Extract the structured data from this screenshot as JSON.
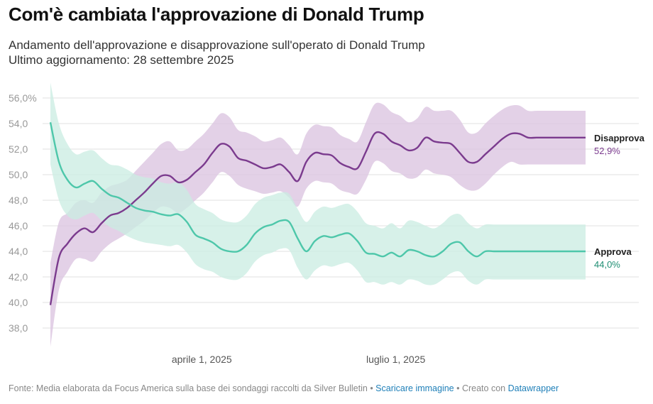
{
  "title": "Com'è cambiata l'approvazione di Donald Trump",
  "subtitle_line1": "Andamento dell'approvazione e disapprovazione sull'operato di Donald Trump",
  "subtitle_line2": "Ultimo aggiornamento: 28 settembre 2025",
  "footer": {
    "source": "Fonte: Media elaborata da Focus America sulla base dei sondaggi raccolti da Silver Bulletin",
    "sep1": " • ",
    "download": "Scaricare immagine",
    "sep2": " • Creato con ",
    "tool": "Datawrapper"
  },
  "colors": {
    "disapprove_line": "#7b3b8e",
    "disapprove_band": "#d9c2df",
    "approve_line": "#4ec7aa",
    "approve_band": "#c9ece1",
    "approve_value_label": "#1f8e73",
    "grid": "#e2e2e2"
  },
  "chart_data": {
    "type": "line",
    "x_axis": {
      "type": "date",
      "range": [
        "2025-01-20",
        "2025-09-28"
      ],
      "ticks": [
        "2025-04-01",
        "2025-07-01"
      ],
      "tick_labels": [
        "aprile 1, 2025",
        "luglio 1, 2025"
      ]
    },
    "y_axis": {
      "range": [
        37,
        57
      ],
      "ticks": [
        38,
        40,
        42,
        44,
        46,
        48,
        50,
        52,
        54,
        56
      ],
      "tick_labels": [
        "38,0",
        "40,0",
        "42,0",
        "44,0",
        "46,0",
        "48,0",
        "50,0",
        "52,0",
        "54,0",
        "56,0%"
      ]
    },
    "grid": true,
    "series": [
      {
        "name": "Disapprova",
        "end_value_label": "52,9%",
        "x": [
          "2025-01-20",
          "2025-01-24",
          "2025-01-28",
          "2025-02-01",
          "2025-02-05",
          "2025-02-09",
          "2025-02-13",
          "2025-02-17",
          "2025-02-21",
          "2025-02-25",
          "2025-03-01",
          "2025-03-05",
          "2025-03-09",
          "2025-03-13",
          "2025-03-17",
          "2025-03-21",
          "2025-03-25",
          "2025-03-29",
          "2025-04-02",
          "2025-04-06",
          "2025-04-10",
          "2025-04-14",
          "2025-04-18",
          "2025-04-22",
          "2025-04-26",
          "2025-04-30",
          "2025-05-04",
          "2025-05-08",
          "2025-05-12",
          "2025-05-16",
          "2025-05-20",
          "2025-05-24",
          "2025-05-28",
          "2025-06-01",
          "2025-06-05",
          "2025-06-09",
          "2025-06-13",
          "2025-06-17",
          "2025-06-21",
          "2025-06-25",
          "2025-06-29",
          "2025-07-03",
          "2025-07-07",
          "2025-07-11",
          "2025-07-15",
          "2025-07-19",
          "2025-07-23",
          "2025-07-27",
          "2025-07-31",
          "2025-08-04",
          "2025-08-08",
          "2025-08-12",
          "2025-08-16",
          "2025-08-20",
          "2025-08-24",
          "2025-08-28",
          "2025-09-01",
          "2025-09-05",
          "2025-09-09",
          "2025-09-13",
          "2025-09-17",
          "2025-09-21",
          "2025-09-25",
          "2025-09-28"
        ],
        "values": [
          39.8,
          43.5,
          44.6,
          45.4,
          45.8,
          45.5,
          46.2,
          46.8,
          47.0,
          47.4,
          48.0,
          48.6,
          49.3,
          49.9,
          49.9,
          49.4,
          49.6,
          50.2,
          50.8,
          51.7,
          52.4,
          52.2,
          51.3,
          51.1,
          50.8,
          50.5,
          50.6,
          50.8,
          50.2,
          49.5,
          51.0,
          51.7,
          51.6,
          51.5,
          50.9,
          50.6,
          50.5,
          51.8,
          53.2,
          53.2,
          52.6,
          52.3,
          51.9,
          52.1,
          52.9,
          52.6,
          52.5,
          52.4,
          51.7,
          51.0,
          51.0,
          51.6,
          52.2,
          52.8,
          53.2,
          53.2,
          52.9,
          52.9,
          52.9,
          52.9,
          52.9,
          52.9,
          52.9,
          52.9
        ],
        "band_low": [
          36.5,
          41.0,
          42.4,
          43.4,
          43.4,
          43.2,
          44.0,
          44.6,
          45.0,
          45.4,
          45.9,
          46.4,
          47.0,
          47.5,
          47.4,
          47.0,
          47.4,
          48.0,
          48.6,
          49.4,
          50.2,
          49.9,
          49.2,
          48.9,
          48.7,
          48.5,
          48.6,
          48.7,
          48.2,
          47.5,
          48.9,
          49.5,
          49.4,
          49.3,
          48.8,
          48.6,
          48.5,
          49.6,
          51.0,
          50.9,
          50.3,
          50.1,
          49.7,
          49.8,
          50.4,
          50.1,
          50.0,
          49.8,
          49.2,
          48.8,
          48.8,
          49.3,
          50.0,
          50.6,
          51.0,
          50.8,
          50.8,
          50.8,
          50.8,
          50.8,
          50.8,
          50.8,
          50.8,
          50.8
        ],
        "band_high": [
          43.1,
          46.3,
          47.0,
          47.8,
          48.0,
          47.8,
          48.6,
          49.1,
          49.3,
          49.6,
          50.3,
          51.0,
          51.7,
          52.4,
          52.6,
          51.9,
          52.0,
          52.6,
          53.2,
          54.0,
          54.8,
          54.5,
          53.5,
          53.3,
          53.0,
          52.6,
          52.7,
          52.9,
          52.3,
          51.6,
          53.2,
          53.9,
          53.8,
          53.7,
          53.1,
          52.8,
          52.6,
          54.1,
          55.5,
          55.5,
          54.9,
          54.6,
          54.1,
          54.4,
          55.3,
          55.0,
          55.0,
          55.0,
          54.3,
          53.3,
          53.3,
          54.0,
          54.6,
          55.1,
          55.4,
          55.4,
          55.0,
          55.0,
          55.0,
          55.0,
          55.0,
          55.0,
          55.0,
          55.0
        ]
      },
      {
        "name": "Approva",
        "end_value_label": "44,0%",
        "x": [
          "2025-01-20",
          "2025-01-24",
          "2025-01-28",
          "2025-02-01",
          "2025-02-05",
          "2025-02-09",
          "2025-02-13",
          "2025-02-17",
          "2025-02-21",
          "2025-02-25",
          "2025-03-01",
          "2025-03-05",
          "2025-03-09",
          "2025-03-13",
          "2025-03-17",
          "2025-03-21",
          "2025-03-25",
          "2025-03-29",
          "2025-04-02",
          "2025-04-06",
          "2025-04-10",
          "2025-04-14",
          "2025-04-18",
          "2025-04-22",
          "2025-04-26",
          "2025-04-30",
          "2025-05-04",
          "2025-05-08",
          "2025-05-12",
          "2025-05-16",
          "2025-05-20",
          "2025-05-24",
          "2025-05-28",
          "2025-06-01",
          "2025-06-05",
          "2025-06-09",
          "2025-06-13",
          "2025-06-17",
          "2025-06-21",
          "2025-06-25",
          "2025-06-29",
          "2025-07-03",
          "2025-07-07",
          "2025-07-11",
          "2025-07-15",
          "2025-07-19",
          "2025-07-23",
          "2025-07-27",
          "2025-07-31",
          "2025-08-04",
          "2025-08-08",
          "2025-08-12",
          "2025-08-16",
          "2025-08-20",
          "2025-08-24",
          "2025-08-28",
          "2025-09-01",
          "2025-09-05",
          "2025-09-09",
          "2025-09-13",
          "2025-09-17",
          "2025-09-21",
          "2025-09-25",
          "2025-09-28"
        ],
        "values": [
          54.1,
          51.0,
          49.6,
          49.0,
          49.3,
          49.5,
          48.9,
          48.4,
          48.2,
          47.8,
          47.4,
          47.2,
          47.1,
          46.9,
          46.8,
          46.9,
          46.3,
          45.3,
          45.0,
          44.7,
          44.2,
          44.0,
          44.0,
          44.5,
          45.4,
          45.9,
          46.1,
          46.4,
          46.3,
          45.0,
          44.0,
          44.8,
          45.2,
          45.1,
          45.3,
          45.4,
          44.8,
          43.9,
          43.8,
          43.6,
          43.9,
          43.6,
          44.1,
          44.0,
          43.7,
          43.6,
          44.0,
          44.6,
          44.7,
          44.0,
          43.6,
          44.0,
          44.0,
          44.0,
          44.0,
          44.0,
          44.0,
          44.0,
          44.0,
          44.0,
          44.0,
          44.0,
          44.0,
          44.0
        ],
        "band_low": [
          50.8,
          48.0,
          46.8,
          46.5,
          46.8,
          47.0,
          46.4,
          45.9,
          45.6,
          45.2,
          44.9,
          44.7,
          44.6,
          44.5,
          44.4,
          44.5,
          43.9,
          43.0,
          42.6,
          42.4,
          42.0,
          41.8,
          41.8,
          42.3,
          43.2,
          43.7,
          43.9,
          44.2,
          44.1,
          42.7,
          41.8,
          42.5,
          42.9,
          42.8,
          43.0,
          43.1,
          42.5,
          41.6,
          41.6,
          41.4,
          41.6,
          41.4,
          41.8,
          41.7,
          41.4,
          41.4,
          41.8,
          42.3,
          42.4,
          41.7,
          41.4,
          41.8,
          41.8,
          41.8,
          41.8,
          41.8,
          41.8,
          41.8,
          41.8,
          41.8,
          41.8,
          41.8,
          41.8,
          41.8
        ],
        "band_high": [
          57.2,
          54.0,
          52.4,
          51.6,
          51.8,
          51.9,
          51.3,
          50.8,
          50.7,
          50.4,
          50.0,
          49.8,
          49.7,
          49.4,
          49.3,
          49.4,
          48.8,
          47.7,
          47.3,
          47.0,
          46.5,
          46.3,
          46.3,
          46.8,
          47.7,
          48.2,
          48.4,
          48.6,
          48.5,
          47.3,
          46.3,
          47.1,
          47.5,
          47.4,
          47.6,
          47.7,
          47.1,
          46.2,
          46.0,
          45.8,
          46.2,
          45.8,
          46.4,
          46.3,
          46.0,
          45.8,
          46.2,
          46.8,
          46.9,
          46.2,
          45.8,
          46.1,
          46.1,
          46.1,
          46.1,
          46.1,
          46.1,
          46.1,
          46.1,
          46.1,
          46.1,
          46.1,
          46.1,
          46.1
        ]
      }
    ]
  }
}
